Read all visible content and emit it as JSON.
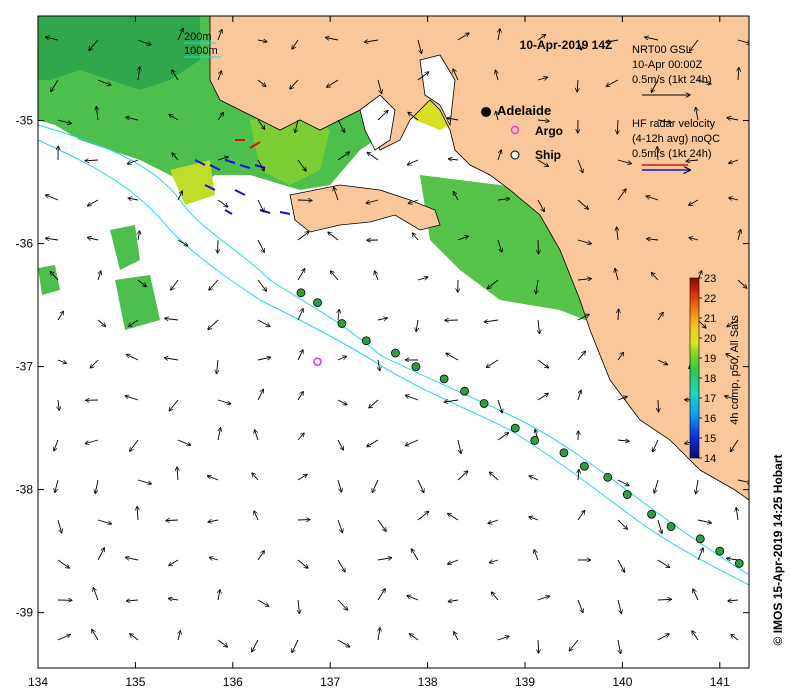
{
  "chart_data": {
    "type": "map",
    "title": "10-Apr-2019 14Z",
    "x_ticks": [
      "134",
      "135",
      "136",
      "137",
      "138",
      "139",
      "140",
      "141"
    ],
    "y_ticks": [
      "-35",
      "-36",
      "-37",
      "-38",
      "-39"
    ],
    "xlim": [
      134,
      141.3
    ],
    "ylim": [
      -39.45,
      -34.15
    ],
    "bathymetry_legend": [
      "200m",
      "1000m"
    ],
    "places": [
      {
        "label": "Adelaide",
        "lon": 138.6,
        "lat": -34.93
      }
    ],
    "legend_markers": [
      {
        "label": "Argo",
        "color": "#e040e0"
      },
      {
        "label": "Ship",
        "color": "#000000"
      }
    ],
    "gsl_reference": {
      "lines": [
        "NRT00 GSL",
        "10-Apr 00:00Z",
        "0.5m/s (1kt 24h)"
      ]
    },
    "hf_radar_reference": {
      "lines": [
        "HF radar velocity",
        "(4-12h avg) noQC",
        "0.5m/s (1kt 24h)"
      ]
    },
    "colorbar": {
      "label": "4h comp, p50, All Sats",
      "min": 14,
      "max": 23,
      "ticks": [
        "14",
        "15",
        "16",
        "17",
        "18",
        "19",
        "20",
        "21",
        "22",
        "23"
      ]
    },
    "argo_floats": [
      {
        "lon": 136.87,
        "lat": -36.96
      }
    ],
    "ship_track": [
      {
        "lon": 136.7,
        "lat": -36.4
      },
      {
        "lon": 136.87,
        "lat": -36.48
      },
      {
        "lon": 137.12,
        "lat": -36.65
      },
      {
        "lon": 137.37,
        "lat": -36.79
      },
      {
        "lon": 137.67,
        "lat": -36.89
      },
      {
        "lon": 137.88,
        "lat": -37.0
      },
      {
        "lon": 138.17,
        "lat": -37.1
      },
      {
        "lon": 138.38,
        "lat": -37.2
      },
      {
        "lon": 138.58,
        "lat": -37.3
      },
      {
        "lon": 138.9,
        "lat": -37.5
      },
      {
        "lon": 139.1,
        "lat": -37.6
      },
      {
        "lon": 139.4,
        "lat": -37.7
      },
      {
        "lon": 139.61,
        "lat": -37.81
      },
      {
        "lon": 139.85,
        "lat": -37.9
      },
      {
        "lon": 140.05,
        "lat": -38.04
      },
      {
        "lon": 140.3,
        "lat": -38.2
      },
      {
        "lon": 140.5,
        "lat": -38.3
      },
      {
        "lon": 140.8,
        "lat": -38.4
      },
      {
        "lon": 141.0,
        "lat": -38.5
      },
      {
        "lon": 141.2,
        "lat": -38.6
      }
    ],
    "credit": "© IMOS 15-Apr-2019 14:25 Hobart"
  },
  "colors": {
    "land": "#f9c79a",
    "ocean": "#ffffff",
    "isobath": "#22d8e8",
    "ship_fill": "#2e9e3e",
    "argo": "#e040e0",
    "hf_red": "#e01010",
    "hf_blue": "#1010e0"
  }
}
